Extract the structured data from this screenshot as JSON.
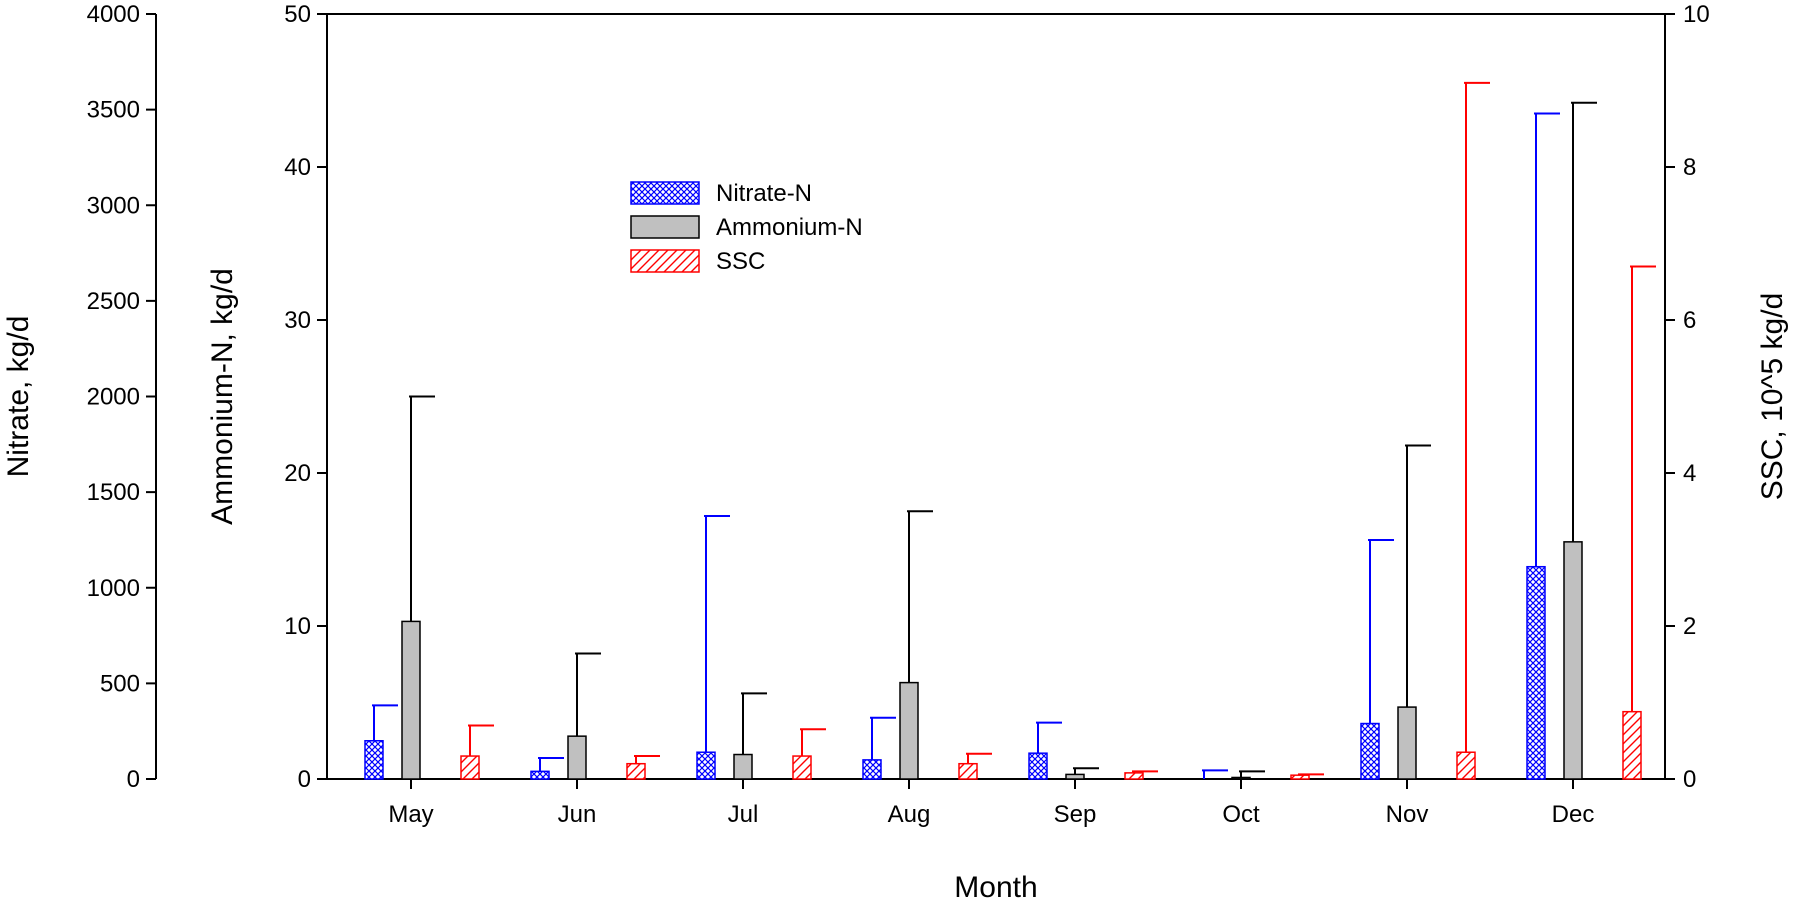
{
  "chart_data": {
    "type": "bar",
    "categories": [
      "May",
      "Jun",
      "Jul",
      "Aug",
      "Sep",
      "Oct",
      "Nov",
      "Dec"
    ],
    "xlabel": "Month",
    "axes": {
      "nitrate": {
        "label": "Nitrate, kg/d",
        "ylim": [
          0,
          4000
        ],
        "ticks": [
          "0",
          "500",
          "1000",
          "1500",
          "2000",
          "2500",
          "3000",
          "3500",
          "4000"
        ]
      },
      "ammonium": {
        "label": "Ammonium-N, kg/d",
        "ylim": [
          0,
          50
        ],
        "ticks": [
          "0",
          "10",
          "20",
          "30",
          "40",
          "50"
        ]
      },
      "ssc": {
        "label": "SSC, 10^5 kg/d",
        "ylim": [
          0,
          10
        ],
        "ticks": [
          "0",
          "2",
          "4",
          "6",
          "8",
          "10"
        ]
      }
    },
    "series": [
      {
        "name": "Nitrate-N",
        "axis": "nitrate",
        "color": "#0000ff",
        "pattern": "crosshatch",
        "values": [
          200,
          40,
          140,
          100,
          135,
          0,
          290,
          1110
        ],
        "errors_upper": [
          385,
          110,
          1375,
          320,
          295,
          45,
          1250,
          3480
        ]
      },
      {
        "name": "Ammonium-N",
        "axis": "ammonium",
        "color": "#000000",
        "fill": "#c0c0c0",
        "pattern": "solid",
        "values": [
          10.3,
          2.8,
          1.6,
          6.3,
          0.3,
          0.1,
          4.7,
          15.5
        ],
        "errors_upper": [
          25.0,
          8.2,
          5.6,
          17.5,
          0.7,
          0.5,
          21.8,
          44.2
        ]
      },
      {
        "name": "SSC",
        "axis": "ssc",
        "color": "#ff0000",
        "pattern": "diagonal",
        "values": [
          0.3,
          0.2,
          0.3,
          0.2,
          0.08,
          0.05,
          0.35,
          0.88
        ],
        "errors_upper": [
          0.7,
          0.3,
          0.65,
          0.33,
          0.1,
          0.06,
          9.1,
          6.7
        ]
      }
    ],
    "legend": {
      "placement": "upper-left-inside"
    },
    "grid": false
  }
}
